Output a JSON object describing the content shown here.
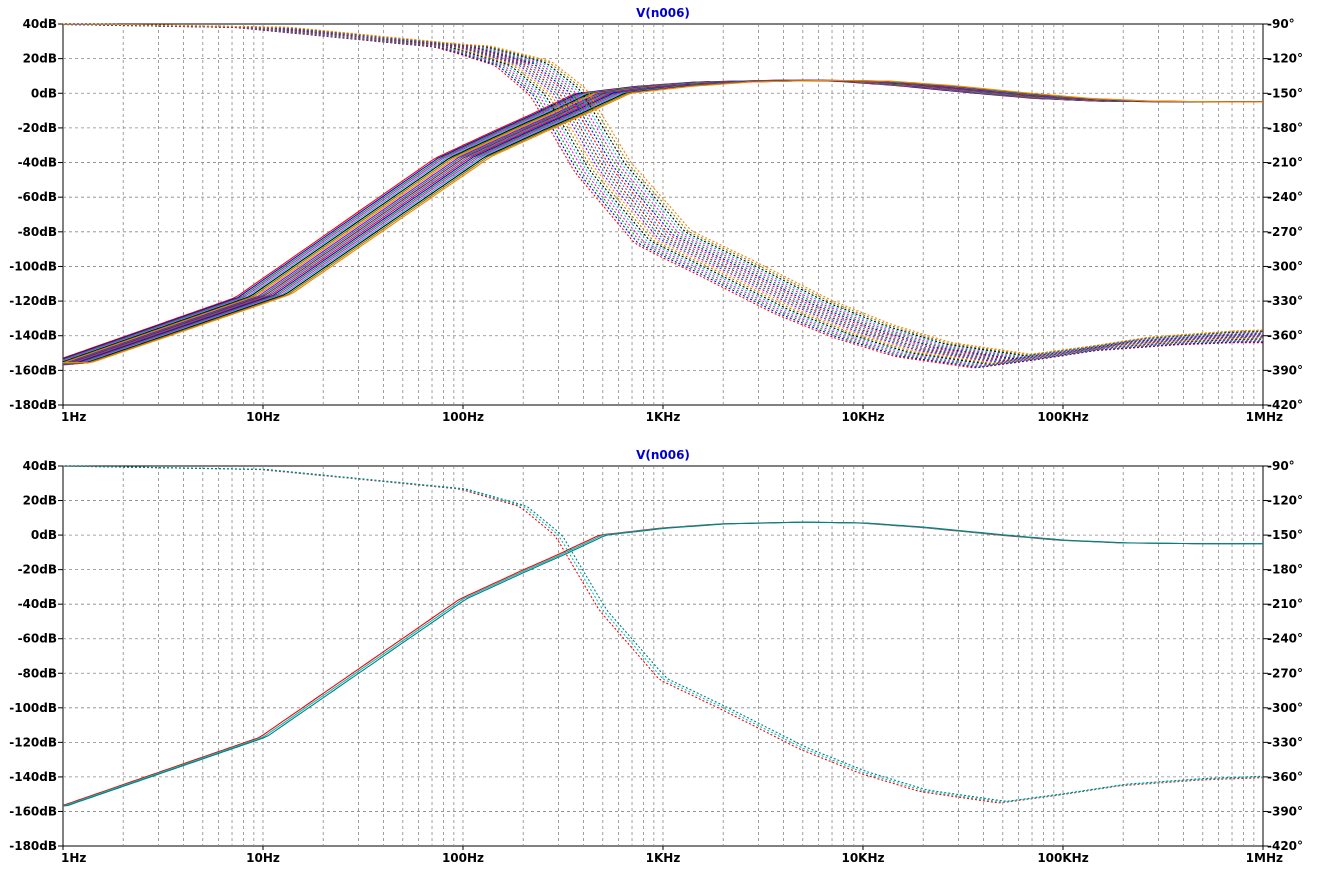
{
  "chart_data": [
    {
      "type": "line",
      "title": "V(n006)",
      "xscale": "log",
      "xlim": [
        1,
        1000000
      ],
      "x_tick_labels": [
        "1Hz",
        "10Hz",
        "100Hz",
        "1KHz",
        "10KHz",
        "100KHz",
        "1MHz"
      ],
      "ylim_left": [
        -180,
        40
      ],
      "y_tick_labels_left": [
        "40dB",
        "20dB",
        "0dB",
        "-20dB",
        "-40dB",
        "-60dB",
        "-80dB",
        "-100dB",
        "-120dB",
        "-140dB",
        "-160dB",
        "-180dB"
      ],
      "ylim_right": [
        -420,
        -90
      ],
      "y_tick_labels_right": [
        "-90°",
        "-120°",
        "-150°",
        "-180°",
        "-210°",
        "-240°",
        "-270°",
        "-300°",
        "-330°",
        "-360°",
        "-390°",
        "-420°"
      ],
      "grid": true,
      "grid_style": "dashed",
      "x": [
        1,
        10,
        100,
        200,
        300,
        500,
        1000,
        2000,
        5000,
        10000,
        20000,
        50000,
        100000,
        200000,
        500000,
        1000000
      ],
      "magnitude_db": [
        -157,
        -117,
        -37,
        -21,
        -12,
        0,
        4,
        6.5,
        7.5,
        7,
        4.5,
        0,
        -3,
        -4.5,
        -5,
        -5
      ],
      "phase_deg": [
        -90,
        -93,
        -110,
        -125,
        -150,
        -215,
        -275,
        -300,
        -335,
        -356,
        -372,
        -382,
        -375,
        -367,
        -362,
        -360
      ],
      "step_runs": 20,
      "spread": "wide",
      "series_colors": [
        "#ff0000",
        "#0000ff",
        "#00a000",
        "#ff00ff",
        "#00c0c0",
        "#000000",
        "#808000",
        "#ff8000",
        "#8000ff",
        "#008080",
        "#c00000",
        "#0080ff"
      ]
    },
    {
      "type": "line",
      "title": "V(n006)",
      "xscale": "log",
      "xlim": [
        1,
        1000000
      ],
      "x_tick_labels": [
        "1Hz",
        "10Hz",
        "100Hz",
        "1KHz",
        "10KHz",
        "100KHz",
        "1MHz"
      ],
      "ylim_left": [
        -180,
        40
      ],
      "y_tick_labels_left": [
        "40dB",
        "20dB",
        "0dB",
        "-20dB",
        "-40dB",
        "-60dB",
        "-80dB",
        "-100dB",
        "-120dB",
        "-140dB",
        "-160dB",
        "-180dB"
      ],
      "ylim_right": [
        -420,
        -90
      ],
      "y_tick_labels_right": [
        "-90°",
        "-120°",
        "-150°",
        "-180°",
        "-210°",
        "-240°",
        "-270°",
        "-300°",
        "-330°",
        "-360°",
        "-390°",
        "-420°"
      ],
      "grid": true,
      "grid_style": "dashed",
      "x": [
        1,
        10,
        100,
        200,
        300,
        500,
        1000,
        2000,
        5000,
        10000,
        20000,
        50000,
        100000,
        200000,
        500000,
        1000000
      ],
      "magnitude_db": [
        -157,
        -117,
        -37,
        -21,
        -12,
        0,
        4,
        6.5,
        7.5,
        7,
        4.5,
        0,
        -3,
        -4.5,
        -5,
        -5
      ],
      "phase_deg": [
        -90,
        -93,
        -110,
        -125,
        -150,
        -215,
        -275,
        -300,
        -335,
        -356,
        -372,
        -382,
        -375,
        -367,
        -362,
        -360
      ],
      "step_runs": 3,
      "spread": "narrow",
      "series_colors": [
        "#ff0000",
        "#00c0c0",
        "#008080"
      ]
    }
  ]
}
